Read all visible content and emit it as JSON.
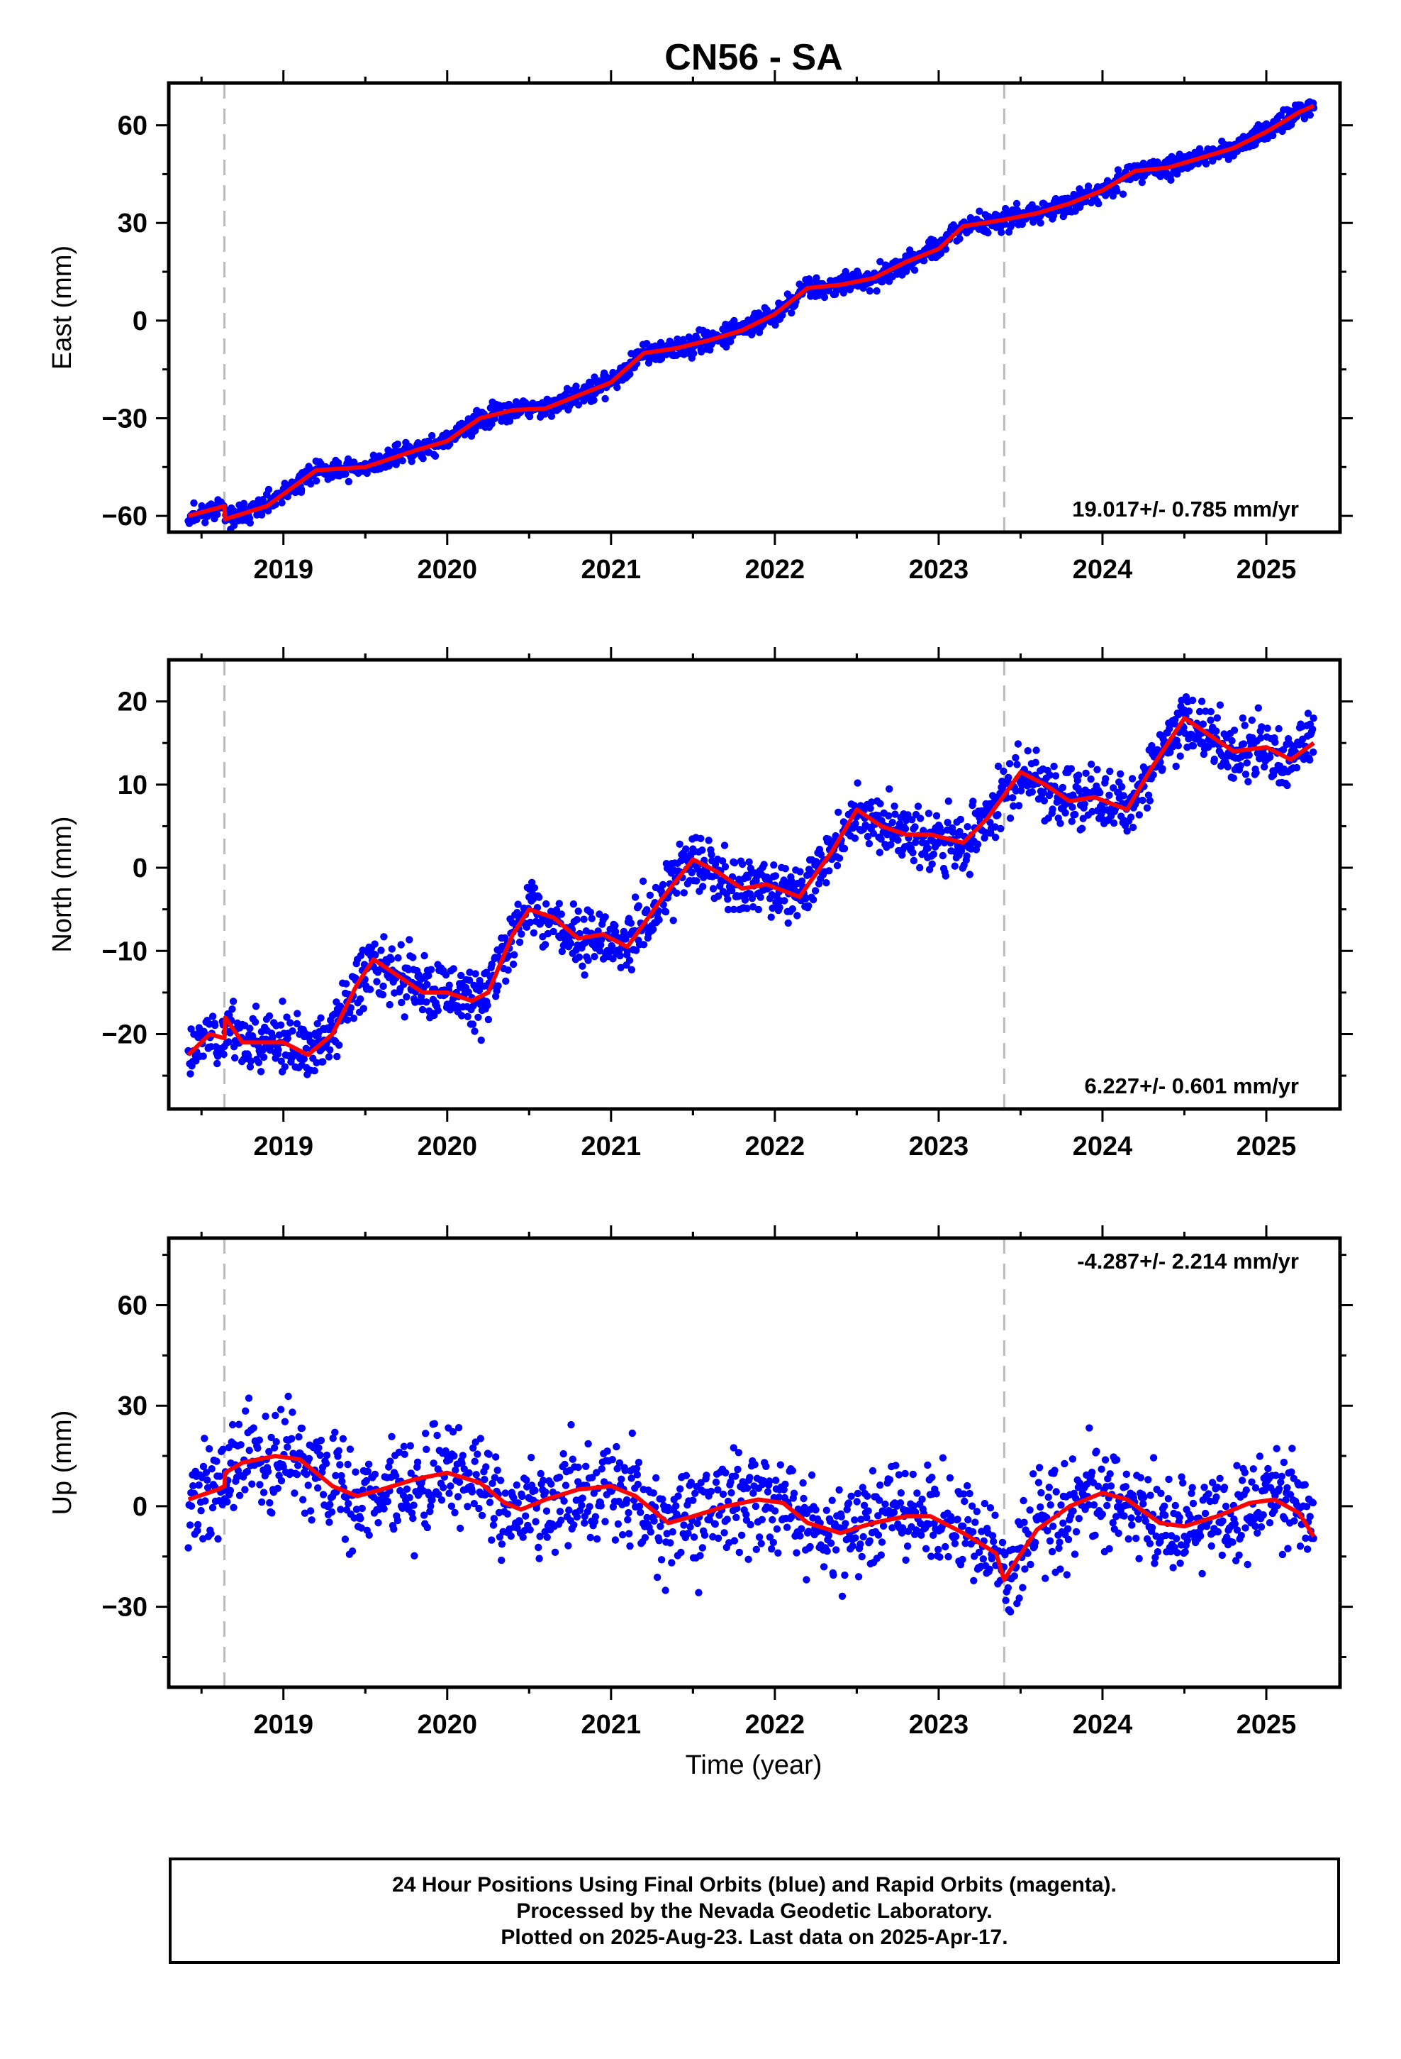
{
  "colors": {
    "final_orbits": "#0000ff",
    "model": "#ff0000",
    "event_line": "#bbbbbb",
    "frame": "#000000"
  },
  "chart_data": {
    "type": "scatter",
    "title": "CN56 - SA",
    "xlabel": "Time (year)",
    "xlim": [
      2018.3,
      2025.45
    ],
    "x_ticks": [
      "2019",
      "2020",
      "2021",
      "2022",
      "2023",
      "2024",
      "2025"
    ],
    "event_lines_x": [
      2018.64,
      2023.4
    ],
    "data_start": 2018.42,
    "data_end": 2025.29,
    "panels": [
      {
        "name": "east",
        "ylabel": "East (mm)",
        "ylim": [
          -65,
          73
        ],
        "y_ticks": [
          -60,
          -30,
          0,
          30,
          60
        ],
        "rate_label": "19.017+/- 0.785 mm/yr",
        "rate_position": "bottom-right",
        "model_knots": [
          [
            2018.42,
            -60
          ],
          [
            2018.64,
            -57
          ],
          [
            2018.645,
            -61
          ],
          [
            2018.9,
            -57
          ],
          [
            2019.2,
            -46
          ],
          [
            2019.5,
            -45
          ],
          [
            2019.8,
            -40
          ],
          [
            2020.0,
            -37
          ],
          [
            2020.2,
            -30
          ],
          [
            2020.4,
            -27.5
          ],
          [
            2020.6,
            -27
          ],
          [
            2020.8,
            -23
          ],
          [
            2021.0,
            -19
          ],
          [
            2021.2,
            -10
          ],
          [
            2021.4,
            -8.5
          ],
          [
            2021.6,
            -6
          ],
          [
            2021.8,
            -3
          ],
          [
            2022.0,
            2
          ],
          [
            2022.2,
            10
          ],
          [
            2022.4,
            11
          ],
          [
            2022.6,
            13
          ],
          [
            2022.8,
            18
          ],
          [
            2023.0,
            22
          ],
          [
            2023.15,
            29
          ],
          [
            2023.4,
            31
          ],
          [
            2023.6,
            33
          ],
          [
            2023.8,
            36
          ],
          [
            2024.0,
            40
          ],
          [
            2024.2,
            46
          ],
          [
            2024.4,
            47
          ],
          [
            2024.6,
            50
          ],
          [
            2024.8,
            53
          ],
          [
            2025.0,
            58
          ],
          [
            2025.2,
            64
          ],
          [
            2025.29,
            66
          ]
        ],
        "points": {
          "count": 1600,
          "scatter_mm": 1.6,
          "seed": 11
        }
      },
      {
        "name": "north",
        "ylabel": "North (mm)",
        "ylim": [
          -29,
          25
        ],
        "y_ticks": [
          -20,
          -10,
          0,
          10,
          20
        ],
        "rate_label": "6.227+/- 0.601 mm/yr",
        "rate_position": "bottom-right",
        "model_knots": [
          [
            2018.42,
            -22.5
          ],
          [
            2018.55,
            -20
          ],
          [
            2018.64,
            -20.5
          ],
          [
            2018.645,
            -18
          ],
          [
            2018.75,
            -21
          ],
          [
            2019.0,
            -21
          ],
          [
            2019.15,
            -22.5
          ],
          [
            2019.3,
            -20
          ],
          [
            2019.45,
            -14
          ],
          [
            2019.55,
            -11
          ],
          [
            2019.7,
            -13
          ],
          [
            2019.85,
            -15
          ],
          [
            2020.0,
            -15
          ],
          [
            2020.15,
            -16
          ],
          [
            2020.25,
            -15
          ],
          [
            2020.4,
            -8
          ],
          [
            2020.5,
            -5
          ],
          [
            2020.65,
            -6
          ],
          [
            2020.8,
            -8.5
          ],
          [
            2020.95,
            -8
          ],
          [
            2021.1,
            -9.5
          ],
          [
            2021.3,
            -4
          ],
          [
            2021.5,
            1
          ],
          [
            2021.65,
            -0.5
          ],
          [
            2021.8,
            -2.5
          ],
          [
            2021.95,
            -2
          ],
          [
            2022.15,
            -3.5
          ],
          [
            2022.35,
            2
          ],
          [
            2022.5,
            7
          ],
          [
            2022.65,
            5
          ],
          [
            2022.8,
            4
          ],
          [
            2022.95,
            4
          ],
          [
            2023.15,
            3
          ],
          [
            2023.3,
            6
          ],
          [
            2023.5,
            11.5
          ],
          [
            2023.65,
            10
          ],
          [
            2023.8,
            8
          ],
          [
            2023.95,
            8.5
          ],
          [
            2024.15,
            7
          ],
          [
            2024.3,
            12
          ],
          [
            2024.5,
            18
          ],
          [
            2024.65,
            16
          ],
          [
            2024.8,
            14
          ],
          [
            2025.0,
            14.5
          ],
          [
            2025.15,
            13
          ],
          [
            2025.29,
            15
          ]
        ],
        "points": {
          "count": 1600,
          "scatter_mm": 1.8,
          "seed": 23
        }
      },
      {
        "name": "up",
        "ylabel": "Up (mm)",
        "ylim": [
          -54,
          80
        ],
        "y_ticks": [
          -30,
          0,
          30,
          60
        ],
        "rate_label": "-4.287+/- 2.214 mm/yr",
        "rate_position": "top-right",
        "model_knots": [
          [
            2018.42,
            2
          ],
          [
            2018.6,
            5
          ],
          [
            2018.64,
            6
          ],
          [
            2018.645,
            10
          ],
          [
            2018.75,
            13
          ],
          [
            2018.95,
            15
          ],
          [
            2019.1,
            14
          ],
          [
            2019.3,
            6
          ],
          [
            2019.45,
            3
          ],
          [
            2019.6,
            5
          ],
          [
            2019.8,
            8
          ],
          [
            2020.0,
            10
          ],
          [
            2020.2,
            7
          ],
          [
            2020.35,
            1
          ],
          [
            2020.45,
            -1
          ],
          [
            2020.6,
            2
          ],
          [
            2020.8,
            5
          ],
          [
            2021.0,
            6
          ],
          [
            2021.15,
            3
          ],
          [
            2021.35,
            -5
          ],
          [
            2021.5,
            -3
          ],
          [
            2021.7,
            0
          ],
          [
            2021.9,
            2
          ],
          [
            2022.05,
            1
          ],
          [
            2022.2,
            -5
          ],
          [
            2022.4,
            -8
          ],
          [
            2022.6,
            -5
          ],
          [
            2022.8,
            -3
          ],
          [
            2022.95,
            -3
          ],
          [
            2023.15,
            -8
          ],
          [
            2023.35,
            -14
          ],
          [
            2023.4,
            -22
          ],
          [
            2023.45,
            -18
          ],
          [
            2023.6,
            -7
          ],
          [
            2023.8,
            0
          ],
          [
            2024.0,
            4
          ],
          [
            2024.15,
            2
          ],
          [
            2024.35,
            -5
          ],
          [
            2024.5,
            -6
          ],
          [
            2024.7,
            -3
          ],
          [
            2024.9,
            1
          ],
          [
            2025.05,
            2
          ],
          [
            2025.2,
            -2
          ],
          [
            2025.29,
            -9
          ]
        ],
        "points": {
          "count": 1400,
          "scatter_mm": 7.5,
          "seed": 37
        }
      }
    ]
  },
  "footer": {
    "line1": "24 Hour Positions Using Final Orbits (blue) and Rapid Orbits (magenta).",
    "line2": "Processed by the Nevada Geodetic Laboratory.",
    "line3": "Plotted on 2025-Aug-23. Last data on 2025-Apr-17."
  }
}
